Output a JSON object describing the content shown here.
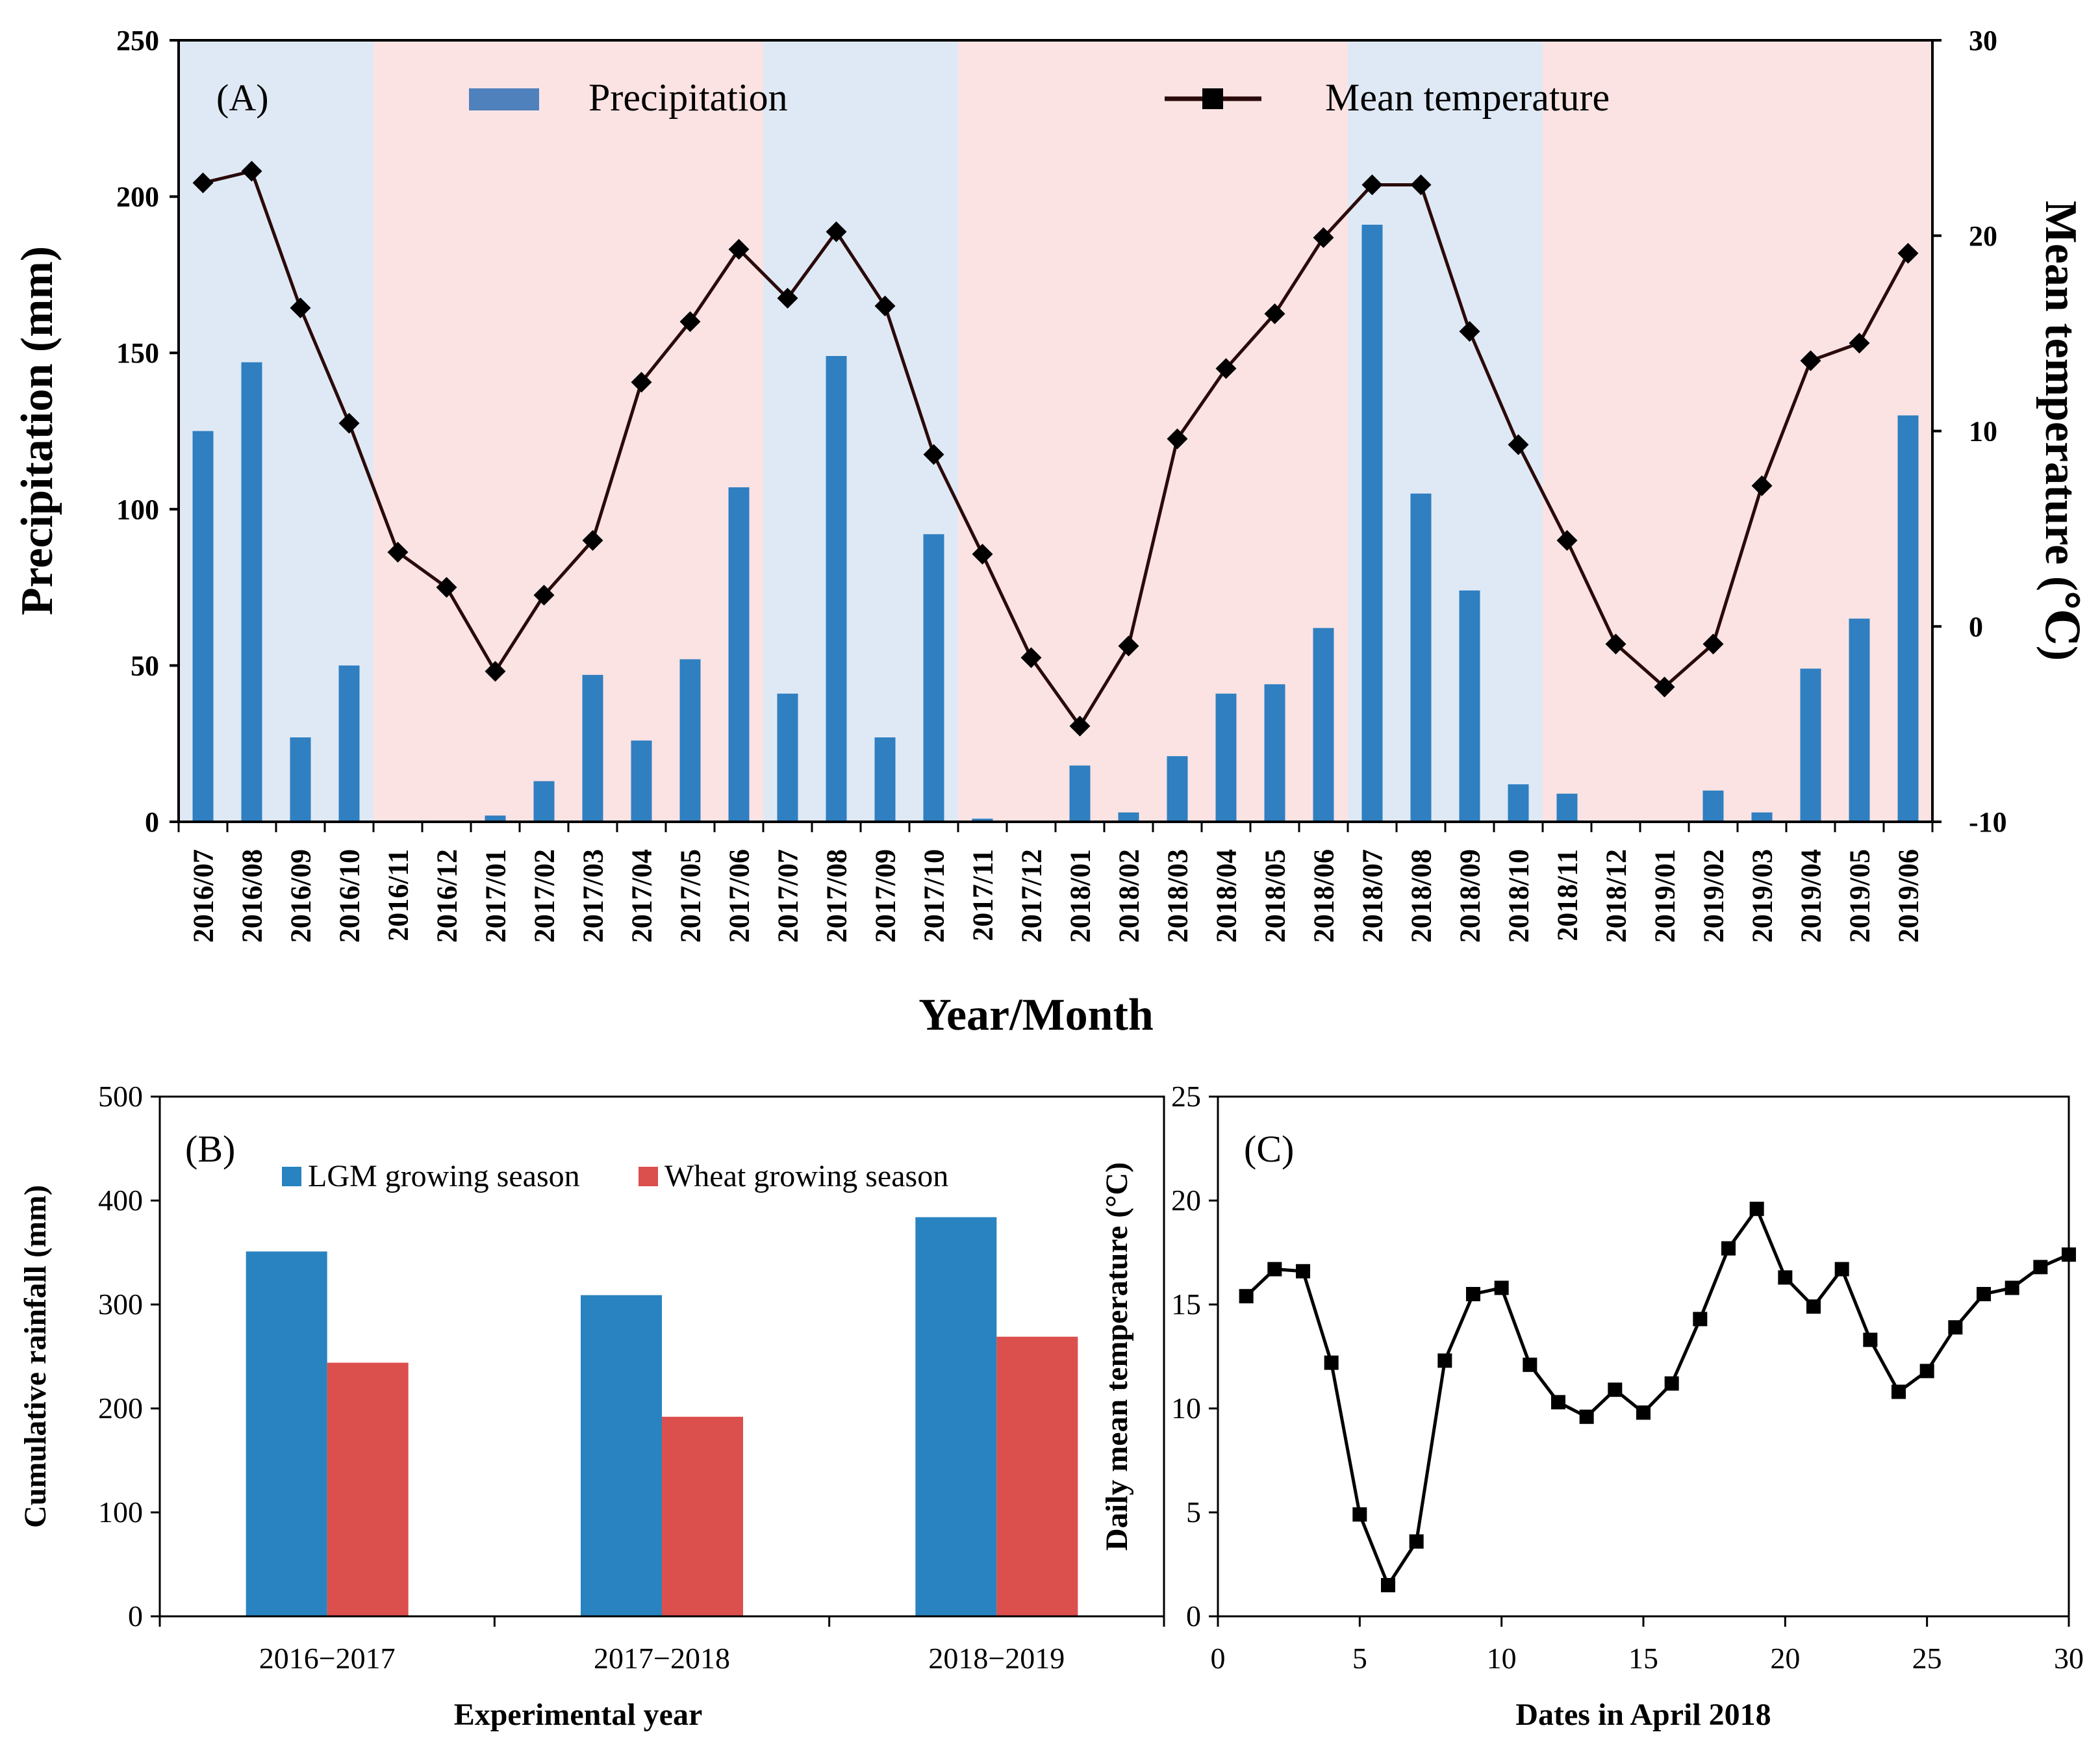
{
  "colors": {
    "summer_bg": "#dfe9f5",
    "winter_bg": "#fbe3e3",
    "precip_bar": "#2f7fc1",
    "temp_line": "#2a0a0a",
    "temp_marker": "#000000",
    "lgm_bar": "#2983c0",
    "wheat_bar": "#db4f4c"
  },
  "chart_data": [
    {
      "type": "bar+line",
      "panel_label": "(A)",
      "xlabel": "Year/Month",
      "ylabel": "Precipitation (mm)",
      "y2label": "Mean  temperature (℃)",
      "ylim": [
        0,
        250
      ],
      "y2lim": [
        -10,
        30
      ],
      "yticks": [
        "0",
        "50",
        "100",
        "150",
        "200",
        "250"
      ],
      "y2ticks": [
        "-10",
        "0",
        "10",
        "20",
        "30"
      ],
      "categories": [
        "2016/07",
        "2016/08",
        "2016/09",
        "2016/10",
        "2016/11",
        "2016/12",
        "2017/01",
        "2017/02",
        "2017/03",
        "2017/04",
        "2017/05",
        "2017/06",
        "2017/07",
        "2017/08",
        "2017/09",
        "2017/10",
        "2017/11",
        "2017/12",
        "2018/01",
        "2018/02",
        "2018/03",
        "2018/04",
        "2018/05",
        "2018/06",
        "2018/07",
        "2018/08",
        "2018/09",
        "2018/10",
        "2018/11",
        "2018/12",
        "2019/01",
        "2019/02",
        "2019/03",
        "2019/04",
        "2019/05",
        "2019/06"
      ],
      "series": [
        {
          "name": "Precipitation",
          "type": "bar",
          "axis": "left",
          "values": [
            125,
            147,
            27,
            50,
            0,
            0,
            2,
            13,
            47,
            26,
            52,
            107,
            41,
            149,
            27,
            92,
            1,
            0,
            18,
            3,
            21,
            41,
            44,
            62,
            191,
            105,
            74,
            12,
            9,
            0,
            0,
            10,
            3,
            49,
            65,
            130
          ]
        },
        {
          "name": "Mean temperature",
          "type": "line",
          "axis": "right",
          "values": [
            22.7,
            23.3,
            16.3,
            10.4,
            3.8,
            2.0,
            -2.3,
            1.6,
            4.4,
            12.5,
            15.6,
            19.3,
            16.8,
            20.2,
            16.4,
            8.8,
            3.7,
            -1.6,
            -5.1,
            -1.0,
            9.6,
            13.2,
            16.0,
            19.9,
            22.6,
            22.6,
            15.1,
            9.3,
            4.4,
            -0.9,
            -3.1,
            -0.9,
            7.2,
            13.6,
            14.5,
            19.1
          ]
        }
      ],
      "season_bands": [
        {
          "season": "summer",
          "start": "2016/07",
          "end": "2016/10"
        },
        {
          "season": "winter",
          "start": "2016/11",
          "end": "2017/06"
        },
        {
          "season": "summer",
          "start": "2017/07",
          "end": "2017/10"
        },
        {
          "season": "winter",
          "start": "2017/11",
          "end": "2018/06"
        },
        {
          "season": "summer",
          "start": "2018/07",
          "end": "2018/10"
        },
        {
          "season": "winter",
          "start": "2018/11",
          "end": "2019/06"
        }
      ],
      "legend": [
        "Precipitation",
        "Mean temperature"
      ],
      "legend_position": "top"
    },
    {
      "type": "bar",
      "panel_label": "(B)",
      "xlabel": "Experimental year",
      "ylabel": "Cumulative rainfall (mm)",
      "ylim": [
        0,
        500
      ],
      "yticks": [
        "0",
        "100",
        "200",
        "300",
        "400",
        "500"
      ],
      "categories": [
        "2016−2017",
        "2017−2018",
        "2018−2019"
      ],
      "series": [
        {
          "name": "LGM growing season",
          "values": [
            351,
            309,
            384
          ]
        },
        {
          "name": "Wheat growing season",
          "values": [
            244,
            192,
            269
          ]
        }
      ],
      "legend_position": "top"
    },
    {
      "type": "line",
      "panel_label": "(C)",
      "xlabel": "Dates in April 2018",
      "ylabel": "Daily mean temperature (°C)",
      "xlim": [
        0,
        30
      ],
      "ylim": [
        0,
        25
      ],
      "xticks": [
        "0",
        "5",
        "10",
        "15",
        "20",
        "25",
        "30"
      ],
      "yticks": [
        "0",
        "5",
        "10",
        "15",
        "20",
        "25"
      ],
      "x": [
        1,
        2,
        3,
        4,
        5,
        6,
        7,
        8,
        9,
        10,
        11,
        12,
        13,
        14,
        15,
        16,
        17,
        18,
        19,
        20,
        21,
        22,
        23,
        24,
        25,
        26,
        27,
        28,
        29,
        30
      ],
      "y": [
        15.4,
        16.7,
        16.6,
        12.2,
        4.9,
        1.5,
        3.6,
        12.3,
        15.5,
        15.8,
        12.1,
        10.3,
        9.6,
        10.9,
        9.8,
        11.2,
        14.3,
        17.7,
        19.6,
        16.3,
        14.9,
        16.7,
        13.3,
        10.8,
        11.8,
        13.9,
        15.5,
        15.8,
        16.8,
        17.4
      ]
    }
  ]
}
